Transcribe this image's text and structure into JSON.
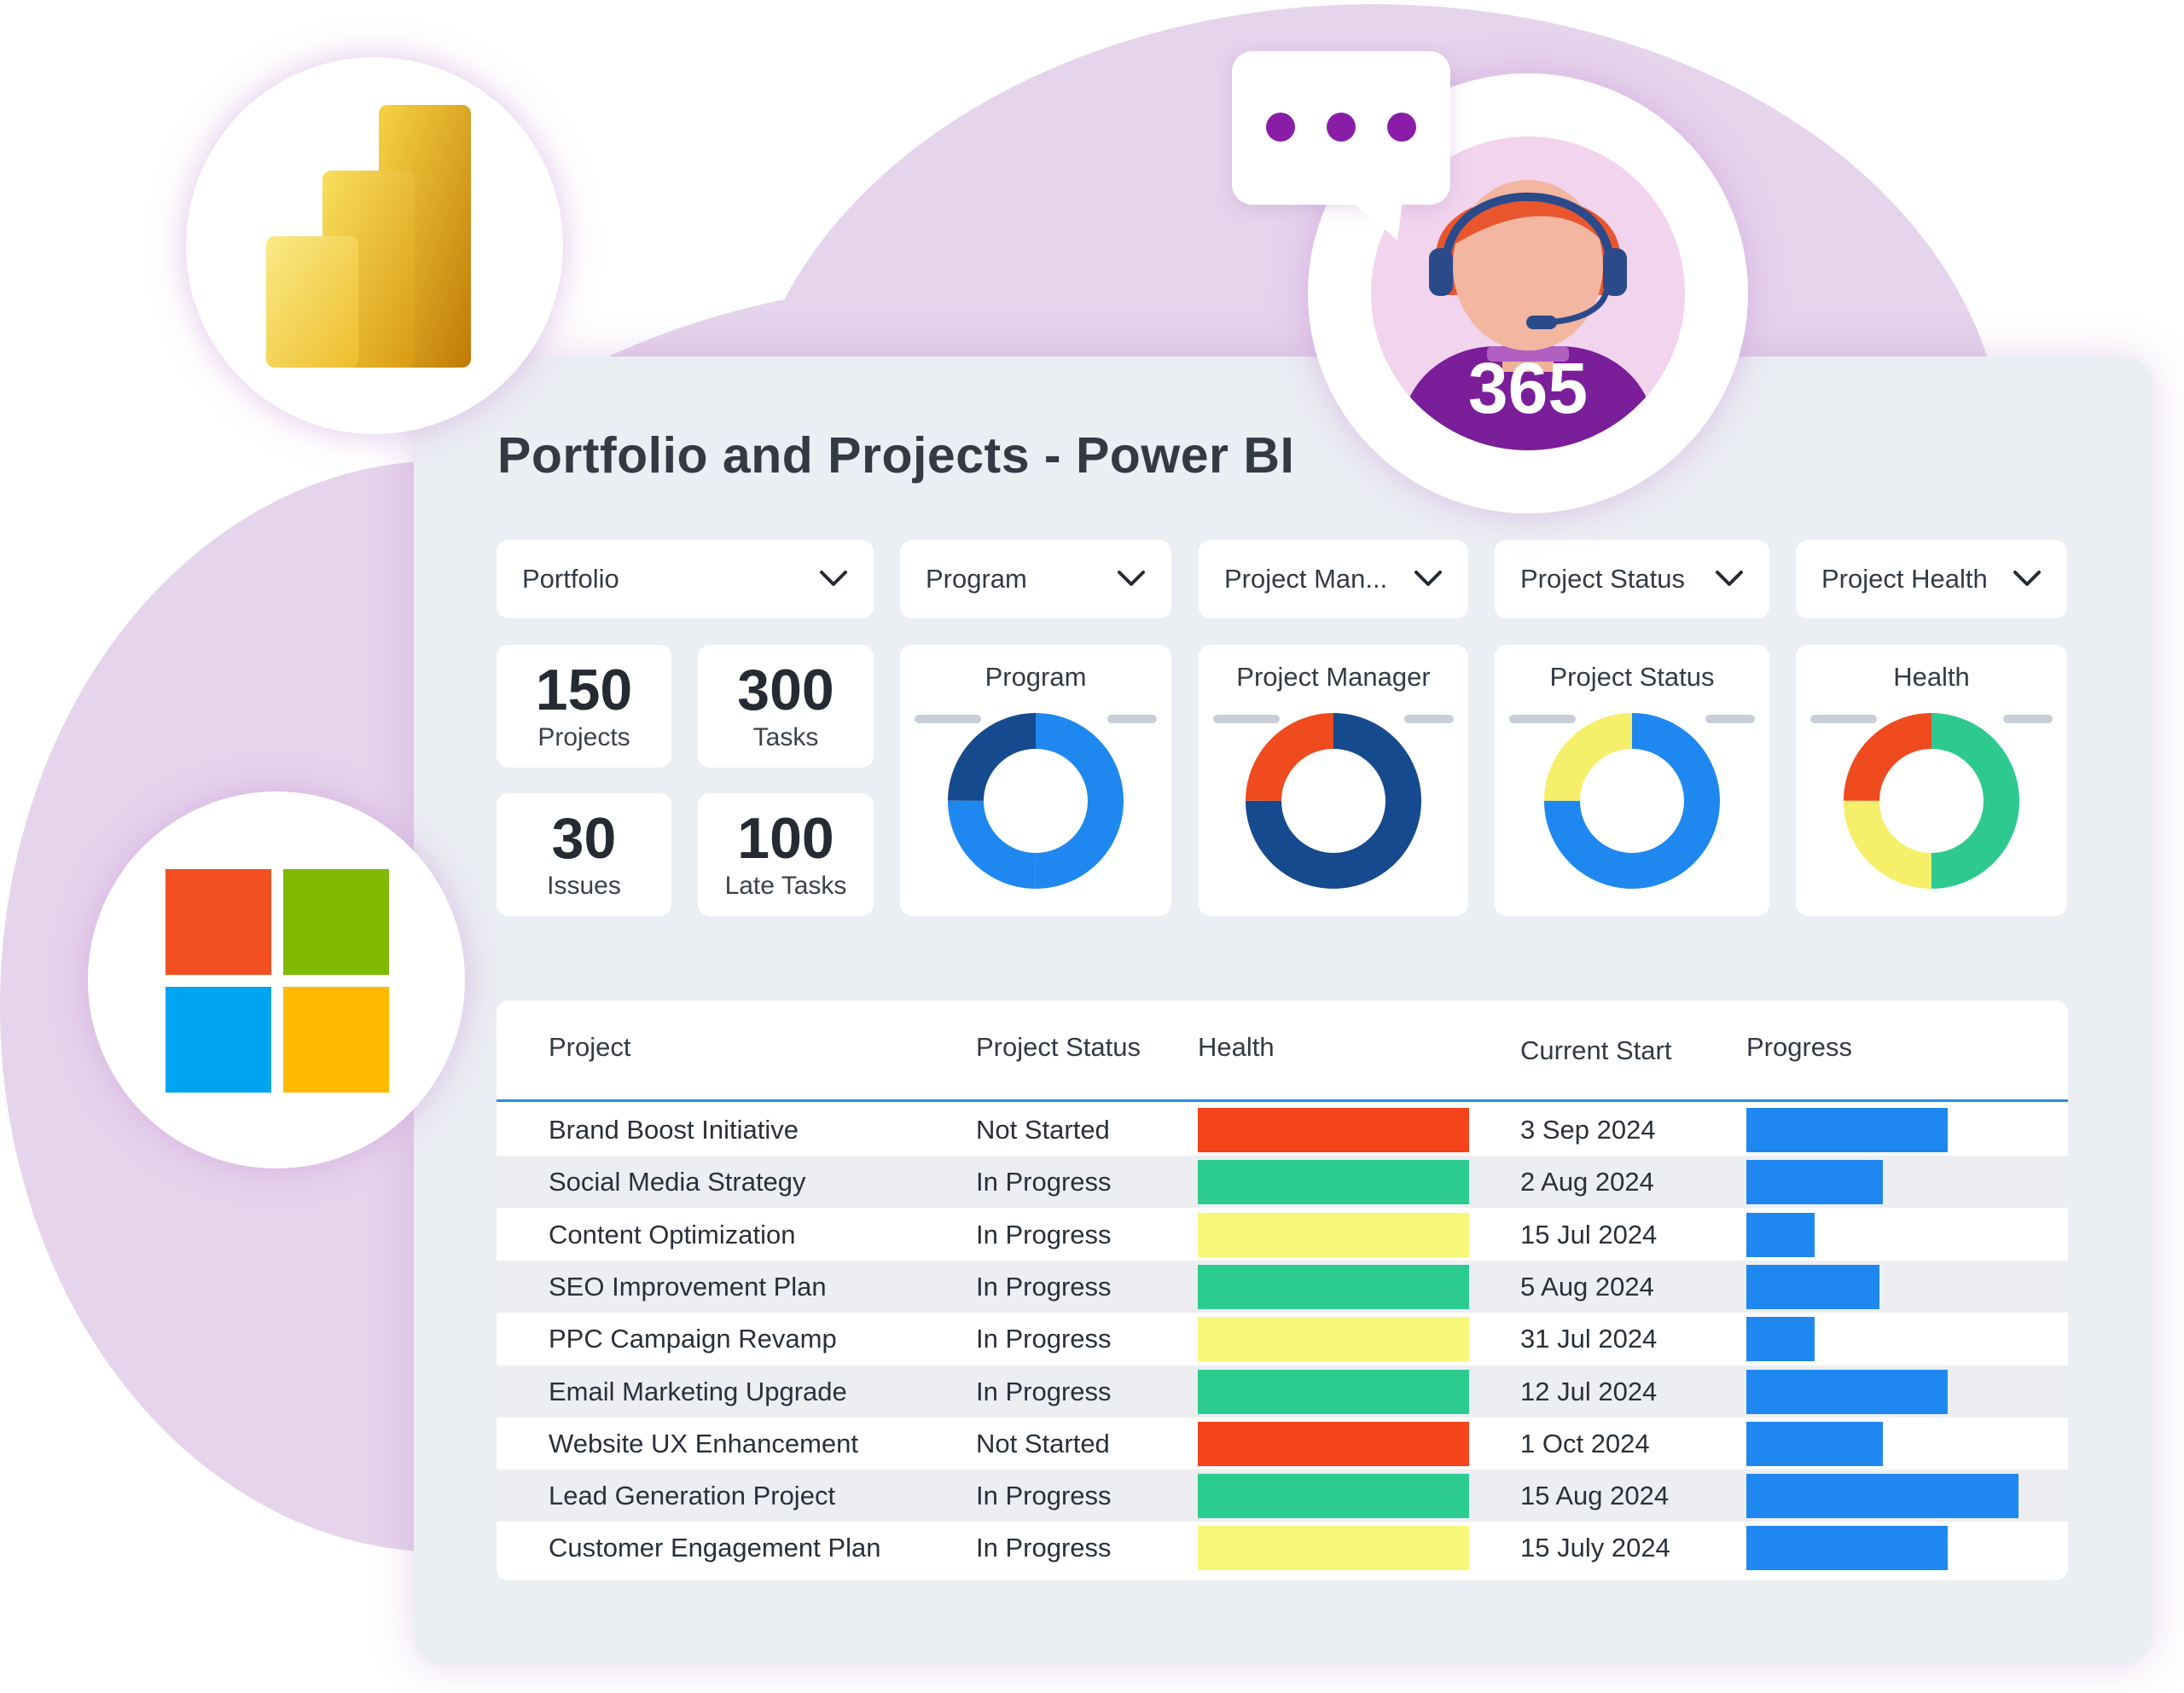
{
  "title": "Portfolio and Projects - Power BI",
  "badge": "365",
  "filters": [
    {
      "label": "Portfolio"
    },
    {
      "label": "Program"
    },
    {
      "label": "Project Man..."
    },
    {
      "label": "Project Status"
    },
    {
      "label": "Project Health"
    }
  ],
  "kpis": [
    {
      "value": "150",
      "label": "Projects"
    },
    {
      "value": "300",
      "label": "Tasks"
    },
    {
      "value": "30",
      "label": "Issues"
    },
    {
      "value": "100",
      "label": "Late Tasks"
    }
  ],
  "donuts": [
    {
      "title": "Program",
      "segments": [
        {
          "value": 50,
          "color": "#1f88f0"
        },
        {
          "value": 25,
          "color": "#1f88f0"
        },
        {
          "value": 25,
          "color": "#164a8e"
        }
      ]
    },
    {
      "title": "Project Manager",
      "segments": [
        {
          "value": 75,
          "color": "#164a8e"
        },
        {
          "value": 25,
          "color": "#f04a1f"
        }
      ]
    },
    {
      "title": "Project Status",
      "segments": [
        {
          "value": 75,
          "color": "#1f88f0"
        },
        {
          "value": 25,
          "color": "#f5ef6a"
        }
      ]
    },
    {
      "title": "Health",
      "segments": [
        {
          "value": 50,
          "color": "#2ec98f"
        },
        {
          "value": 25,
          "color": "#f5ef6a"
        },
        {
          "value": 25,
          "color": "#f04a1f"
        }
      ]
    }
  ],
  "table": {
    "headers": {
      "project": "Project",
      "status": "Project Status",
      "health": "Health",
      "start": "Current Start",
      "progress": "Progress"
    },
    "rows": [
      {
        "project": "Brand Boost Initiative",
        "status": "Not Started",
        "health": "#f5431c",
        "start": "3 Sep 2024",
        "progress": 0.62
      },
      {
        "project": "Social Media Strategy",
        "status": "In Progress",
        "health": "#2ccc91",
        "start": "2 Aug 2024",
        "progress": 0.42
      },
      {
        "project": "Content Optimization",
        "status": "In Progress",
        "health": "#f8f77a",
        "start": "15 Jul 2024",
        "progress": 0.21
      },
      {
        "project": "SEO Improvement Plan",
        "status": "In Progress",
        "health": "#2ccc91",
        "start": "5 Aug 2024",
        "progress": 0.41
      },
      {
        "project": "PPC Campaign Revamp",
        "status": "In Progress",
        "health": "#f8f77a",
        "start": "31 Jul 2024",
        "progress": 0.21
      },
      {
        "project": "Email Marketing Upgrade",
        "status": "In Progress",
        "health": "#2ccc91",
        "start": "12 Jul 2024",
        "progress": 0.62
      },
      {
        "project": "Website UX Enhancement",
        "status": "Not Started",
        "health": "#f5431c",
        "start": "1 Oct 2024",
        "progress": 0.42
      },
      {
        "project": "Lead Generation Project",
        "status": "In Progress",
        "health": "#2ccc91",
        "start": "15 Aug 2024",
        "progress": 0.84
      },
      {
        "project": "Customer Engagement Plan",
        "status": "In Progress",
        "health": "#f8f77a",
        "start": "15 July 2024",
        "progress": 0.62
      }
    ]
  },
  "icons": {
    "powerbi": "power-bi-logo",
    "microsoft": "microsoft-logo",
    "agent": "support-agent-avatar",
    "chat": "chat-bubble-icon"
  }
}
